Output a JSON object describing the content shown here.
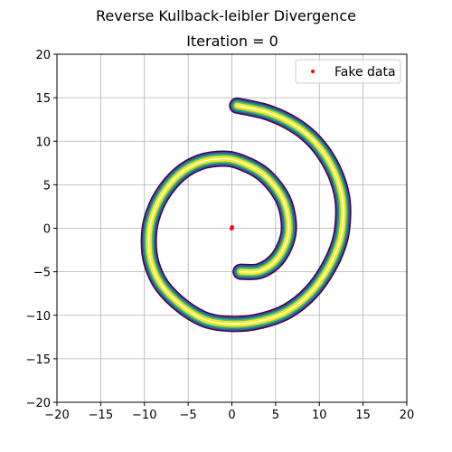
{
  "figure": {
    "title": "Reverse Kullback-leibler Divergence",
    "subtitle": "Iteration = 0"
  },
  "chart_data": {
    "type": "scatter",
    "title": "Iteration = 0",
    "xlabel": "",
    "ylabel": "",
    "xlim": [
      -20,
      20
    ],
    "ylim": [
      -20,
      20
    ],
    "x_ticks": [
      "−20",
      "−15",
      "−10",
      "−5",
      "0",
      "5",
      "10",
      "15",
      "20"
    ],
    "y_ticks": [
      "−20",
      "−15",
      "−10",
      "−5",
      "0",
      "5",
      "10",
      "15",
      "20"
    ],
    "grid": true,
    "legend": {
      "placement": "top-right",
      "entries": [
        "Fake data"
      ]
    },
    "series": [
      {
        "name": "Fake data",
        "color": "#ff0000",
        "points": [
          [
            0.0,
            0.0
          ],
          [
            0.05,
            0.1
          ],
          [
            -0.05,
            -0.05
          ],
          [
            0.02,
            0.15
          ]
        ]
      }
    ],
    "contour": {
      "kind": "spiral density contours (real data)",
      "colormap": [
        "#440154",
        "#3b528b",
        "#21918c",
        "#5ec962",
        "#fde725"
      ],
      "highlight": "#ffffff",
      "centerline": [
        [
          1.0,
          -5.0
        ],
        [
          3.2,
          -4.9
        ],
        [
          5.2,
          -3.5
        ],
        [
          6.4,
          -1.0
        ],
        [
          6.4,
          1.5
        ],
        [
          5.6,
          3.8
        ],
        [
          3.6,
          6.2
        ],
        [
          1.0,
          7.6
        ],
        [
          -1.0,
          8.0
        ],
        [
          -3.6,
          7.6
        ],
        [
          -6.0,
          6.2
        ],
        [
          -8.0,
          3.8
        ],
        [
          -9.2,
          1.0
        ],
        [
          -9.5,
          -1.5
        ],
        [
          -9.2,
          -4.0
        ],
        [
          -8.0,
          -6.6
        ],
        [
          -5.6,
          -9.0
        ],
        [
          -2.8,
          -10.6
        ],
        [
          0.5,
          -11.0
        ],
        [
          3.5,
          -10.6
        ],
        [
          6.4,
          -9.5
        ],
        [
          9.0,
          -7.4
        ],
        [
          11.0,
          -4.6
        ],
        [
          12.3,
          -1.6
        ],
        [
          12.7,
          1.0
        ],
        [
          12.6,
          3.6
        ],
        [
          11.8,
          6.3
        ],
        [
          10.4,
          8.8
        ],
        [
          8.6,
          10.8
        ],
        [
          6.4,
          12.3
        ],
        [
          3.8,
          13.4
        ],
        [
          0.6,
          14.1
        ]
      ]
    }
  }
}
